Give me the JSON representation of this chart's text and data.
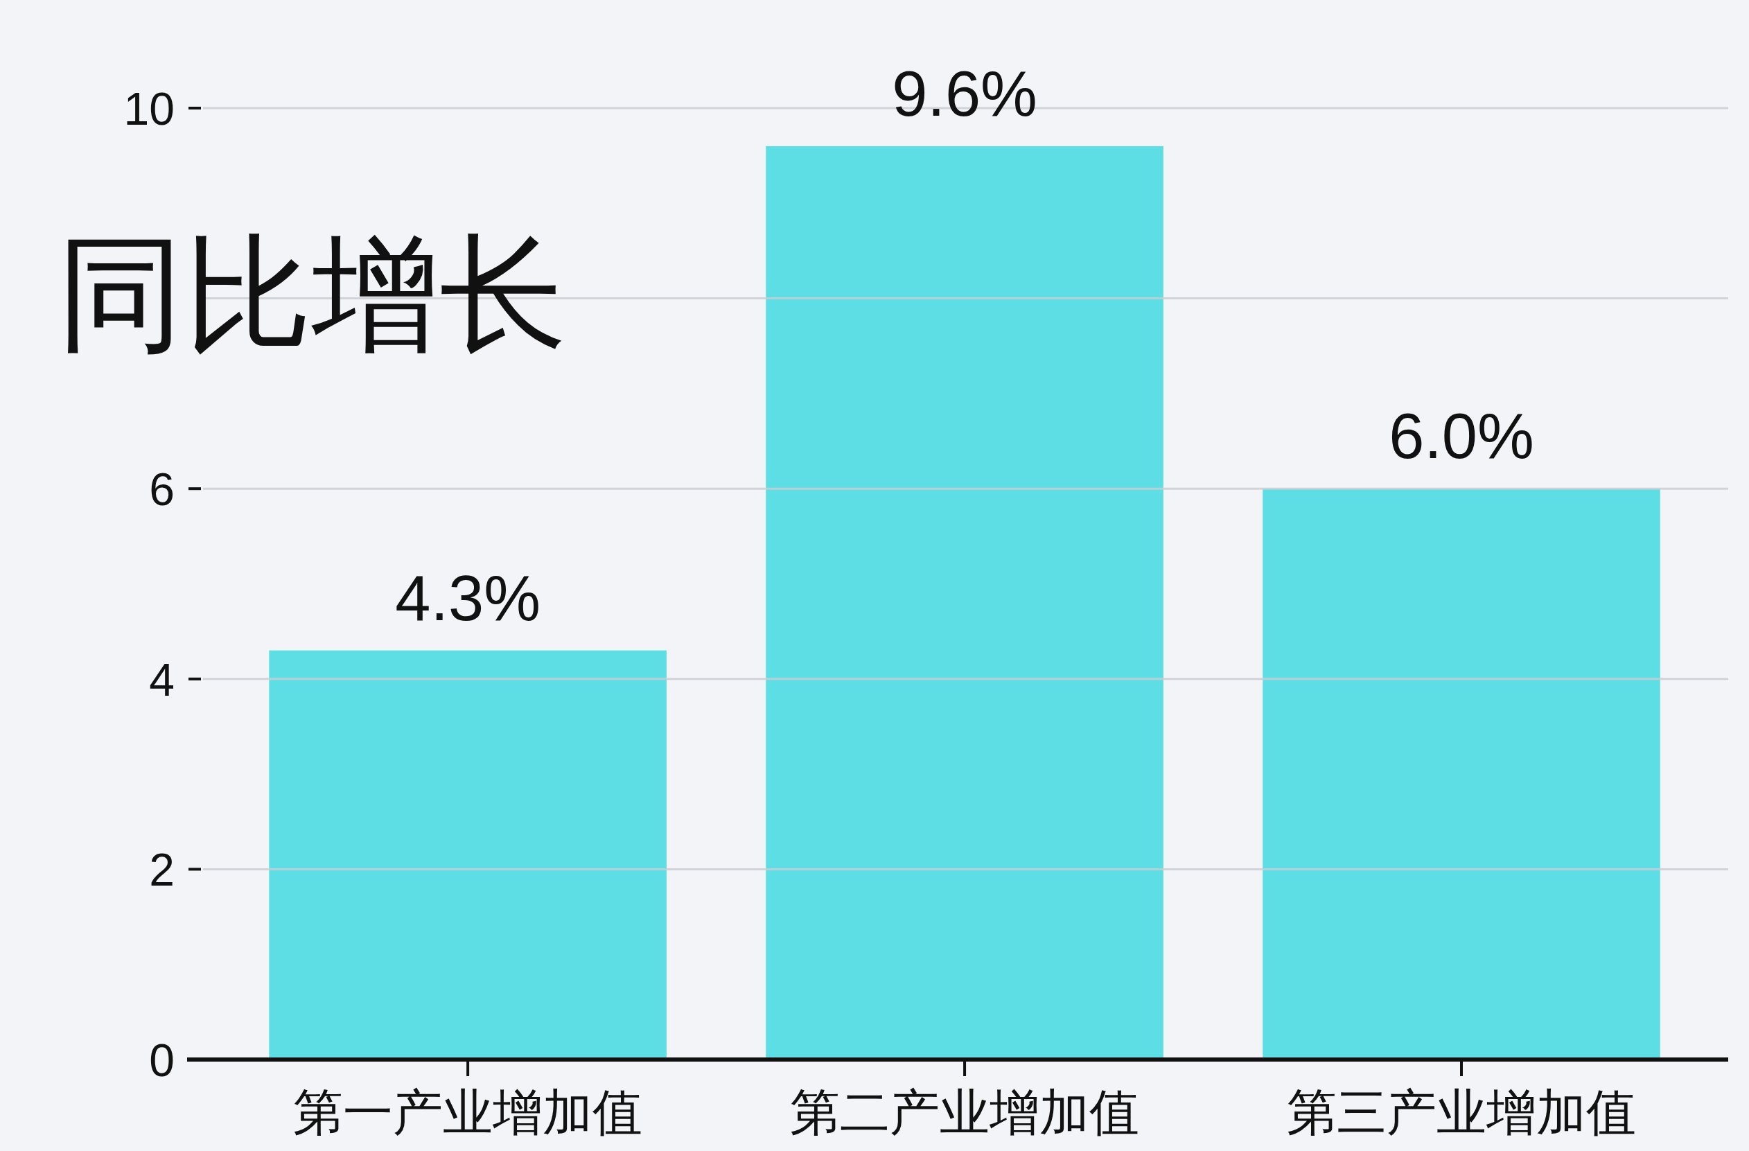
{
  "chart_data": {
    "type": "bar",
    "ylabel": "同比增长",
    "categories": [
      "第一产业增加值",
      "第二产业增加值",
      "第三产业增加值"
    ],
    "values": [
      4.3,
      9.6,
      6.0
    ],
    "value_labels": [
      "4.3%",
      "9.6%",
      "6.0%"
    ],
    "color": "#5cdee4",
    "ylim": [
      0,
      10
    ],
    "yticks": [
      0,
      2,
      4,
      6,
      {
        "value": 8,
        "label": null
      },
      10
    ],
    "grid": "y"
  }
}
